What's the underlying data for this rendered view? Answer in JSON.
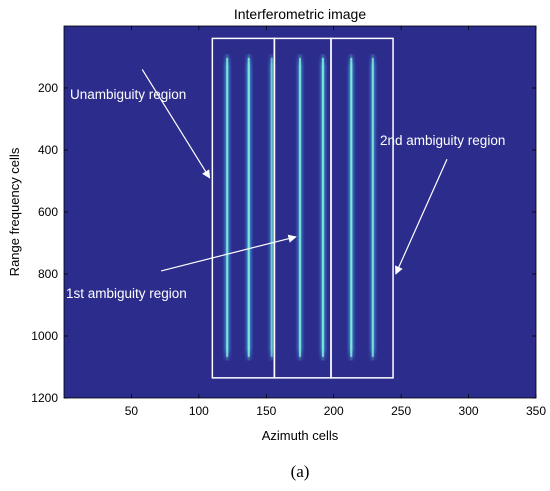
{
  "chart_data": {
    "type": "heatmap",
    "title": "Interferometric image",
    "xlabel": "Azimuth cells",
    "ylabel": "Range frequency cells",
    "xlim": [
      0,
      350
    ],
    "ylim": [
      1200,
      0
    ],
    "y_inverted": true,
    "xticks": [
      50,
      100,
      150,
      200,
      250,
      300,
      350
    ],
    "yticks": [
      200,
      400,
      600,
      800,
      1000,
      1200
    ],
    "grid": false,
    "background_color": "#2c2c8c",
    "stripes": [
      {
        "x": 121,
        "y0": 90,
        "y1": 1080,
        "intensity": 0.9
      },
      {
        "x": 137,
        "y0": 90,
        "y1": 1080,
        "intensity": 1.0
      },
      {
        "x": 154,
        "y0": 90,
        "y1": 1080,
        "intensity": 0.55
      },
      {
        "x": 175,
        "y0": 90,
        "y1": 1080,
        "intensity": 0.85
      },
      {
        "x": 192,
        "y0": 90,
        "y1": 1080,
        "intensity": 0.95
      },
      {
        "x": 213,
        "y0": 90,
        "y1": 1080,
        "intensity": 0.95
      },
      {
        "x": 229,
        "y0": 90,
        "y1": 1080,
        "intensity": 0.8
      }
    ],
    "regions": [
      {
        "label": "Unambiguity region",
        "x0": 110,
        "x1": 156,
        "y0": 40,
        "y1": 1135
      },
      {
        "label": "1st ambiguity region",
        "x0": 156,
        "x1": 198,
        "y0": 40,
        "y1": 1135
      },
      {
        "label": "2nd ambiguity region",
        "x0": 198,
        "x1": 244,
        "y0": 40,
        "y1": 1135
      }
    ],
    "annotations": [
      {
        "text": "Unambiguity region",
        "arrow_from": [
          58,
          140
        ],
        "arrow_to": [
          108,
          490
        ]
      },
      {
        "text": "1st ambiguity region",
        "arrow_from": [
          72,
          790
        ],
        "arrow_to": [
          172,
          680
        ]
      },
      {
        "text": "2nd ambiguity region",
        "arrow_from": [
          284,
          430
        ],
        "arrow_to": [
          246,
          800
        ]
      }
    ]
  },
  "caption": "(a)",
  "colors": {
    "background": "#2c2c8c",
    "stripe_core": "#7de8d8",
    "stripe_edge": "#3a8ed0",
    "region_box": "#ffffff",
    "annotation": "#ffffff"
  }
}
